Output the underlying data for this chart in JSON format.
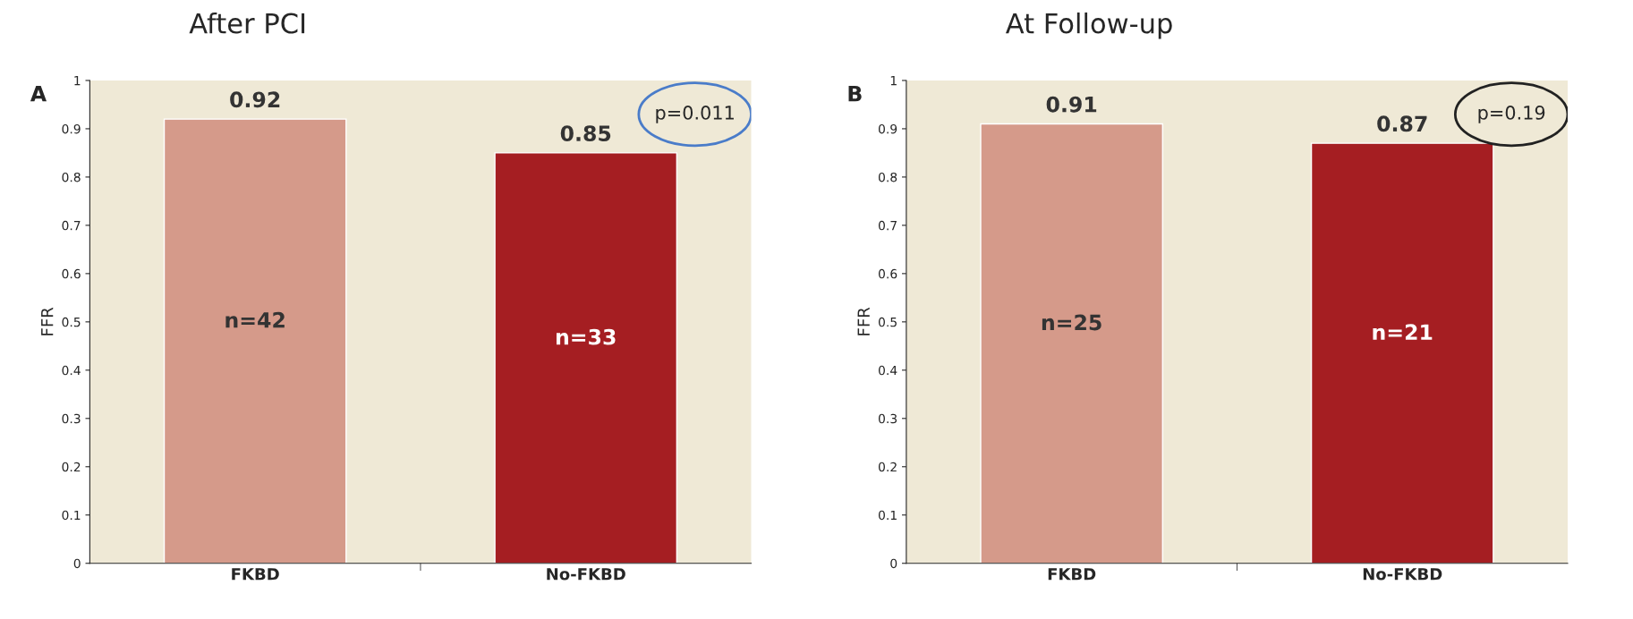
{
  "chart_data": [
    {
      "type": "bar",
      "title": "After PCI",
      "ylabel": "FFR",
      "categories": [
        "FKBD",
        "No-FKBD"
      ],
      "values": [
        0.92,
        0.85
      ],
      "colors": [
        "#d59a8a",
        "#a51e22"
      ],
      "data_labels": true,
      "ylim": [
        0,
        1
      ],
      "yticks": [
        0,
        0.1,
        0.2,
        0.3,
        0.4,
        0.5,
        0.6,
        0.7,
        0.8,
        0.9,
        1
      ],
      "grid": false,
      "annotations": [
        "A",
        "n=42",
        "n=33",
        "p=0.011"
      ]
    },
    {
      "type": "bar",
      "title": "At Follow-up",
      "ylabel": "FFR",
      "categories": [
        "FKBD",
        "No-FKBD"
      ],
      "values": [
        0.91,
        0.87
      ],
      "colors": [
        "#d59a8a",
        "#a51e22"
      ],
      "data_labels": true,
      "ylim": [
        0,
        1
      ],
      "yticks": [
        0,
        0.1,
        0.2,
        0.3,
        0.4,
        0.5,
        0.6,
        0.7,
        0.8,
        0.9,
        1
      ],
      "grid": false,
      "annotations": [
        "B",
        "n=25",
        "n=21",
        "p=0.19"
      ]
    }
  ]
}
